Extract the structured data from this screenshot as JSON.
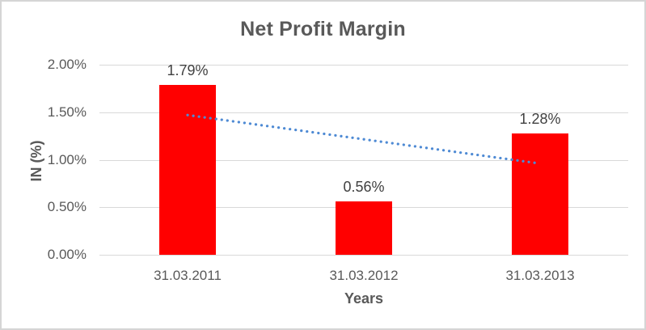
{
  "chart_data": {
    "type": "bar",
    "title": "Net Profit Margin",
    "xlabel": "Years",
    "ylabel": "IN (%)",
    "categories": [
      "31.03.2011",
      "31.03.2012",
      "31.03.2013"
    ],
    "series": [
      {
        "name": "Net Profit Margin",
        "values": [
          1.79,
          0.56,
          1.28
        ],
        "color": "#ff0000"
      }
    ],
    "data_labels": [
      "1.79%",
      "0.56%",
      "1.28%"
    ],
    "y_axis": {
      "min": 0,
      "max": 2,
      "ticks": [
        {
          "value": 0.0,
          "label": "0.00%"
        },
        {
          "value": 0.5,
          "label": "0.50%"
        },
        {
          "value": 1.0,
          "label": "1.00%"
        },
        {
          "value": 1.5,
          "label": "1.50%"
        },
        {
          "value": 2.0,
          "label": "2.00%"
        }
      ]
    },
    "gridlines": true,
    "legend": "none",
    "trendline": {
      "type": "linear",
      "style": "dotted",
      "color": "#4e8ad4",
      "start_value": 1.47,
      "end_value": 0.96
    }
  },
  "colors": {
    "bar": "#ff0000",
    "gridline": "#d9d9d9",
    "frame_border": "#d5d5d5",
    "title_text": "#595959",
    "axis_text": "#595959",
    "data_label_text": "#404040"
  }
}
